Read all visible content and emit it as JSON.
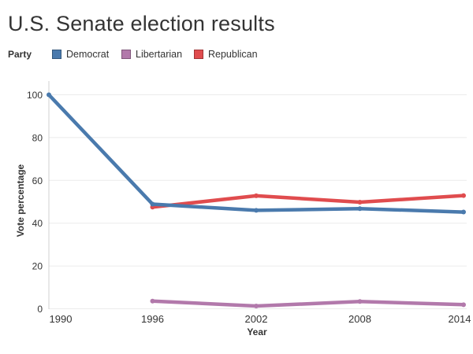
{
  "title": "U.S. Senate election results",
  "legend": {
    "label": "Party",
    "items": [
      {
        "label": "Democrat",
        "color": "#4a7aad"
      },
      {
        "label": "Libertarian",
        "color": "#b279ab"
      },
      {
        "label": "Republican",
        "color": "#e04c4e"
      }
    ]
  },
  "chart_data": {
    "type": "line",
    "title": "U.S. Senate election results",
    "xlabel": "Year",
    "ylabel": "Vote percentage",
    "x": [
      1990,
      1996,
      2002,
      2008,
      2014
    ],
    "ylim": [
      0,
      100
    ],
    "yticks": [
      0,
      20,
      40,
      60,
      80,
      100
    ],
    "grid": "horizontal",
    "legend_position": "top",
    "series": [
      {
        "name": "Democrat",
        "color": "#4a7aad",
        "values": [
          100,
          48.9,
          46.0,
          46.8,
          45.2
        ]
      },
      {
        "name": "Libertarian",
        "color": "#b279ab",
        "values": [
          null,
          3.6,
          1.3,
          3.4,
          1.9
        ]
      },
      {
        "name": "Republican",
        "color": "#e04c4e",
        "values": [
          null,
          47.5,
          52.8,
          49.8,
          52.9
        ]
      }
    ],
    "draw_order": [
      "Libertarian",
      "Republican",
      "Democrat"
    ],
    "colors": {
      "text": "#333333",
      "gridline": "#ebebeb",
      "axis_line": "#d0d0d0"
    }
  }
}
